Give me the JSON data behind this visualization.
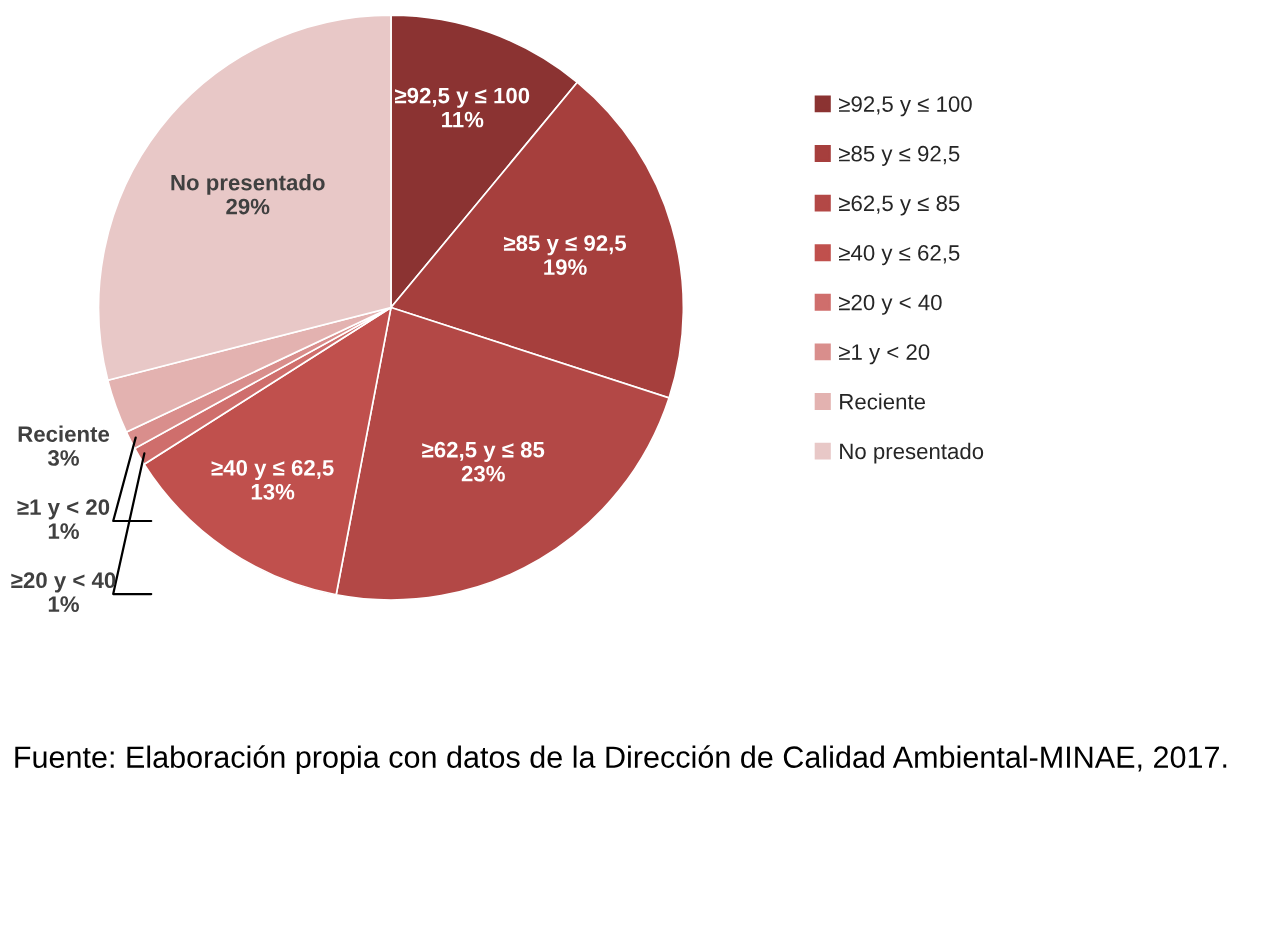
{
  "chart_data": {
    "type": "pie",
    "categories": [
      "≥92,5 y ≤ 100",
      "≥85 y ≤ 92,5",
      "≥62,5 y ≤ 85",
      "≥40 y ≤ 62,5",
      "≥20 y < 40",
      "≥1 y < 20",
      "Reciente",
      "No presentado"
    ],
    "values": [
      11,
      19,
      23,
      13,
      1,
      1,
      3,
      29
    ],
    "value_labels": [
      "11%",
      "19%",
      "23%",
      "13%",
      "1%",
      "1%",
      "3%",
      "29%"
    ],
    "colors": [
      "#8b3332",
      "#a63f3d",
      "#b34846",
      "#c0504d",
      "#cf6e6c",
      "#d98e8c",
      "#e3b2b0",
      "#e8c8c7"
    ],
    "legend": "right",
    "annotations": [
      "Fuente: Elaboración propia con datos de la Dirección de Calidad Ambiental-MINAE, 2017."
    ]
  }
}
